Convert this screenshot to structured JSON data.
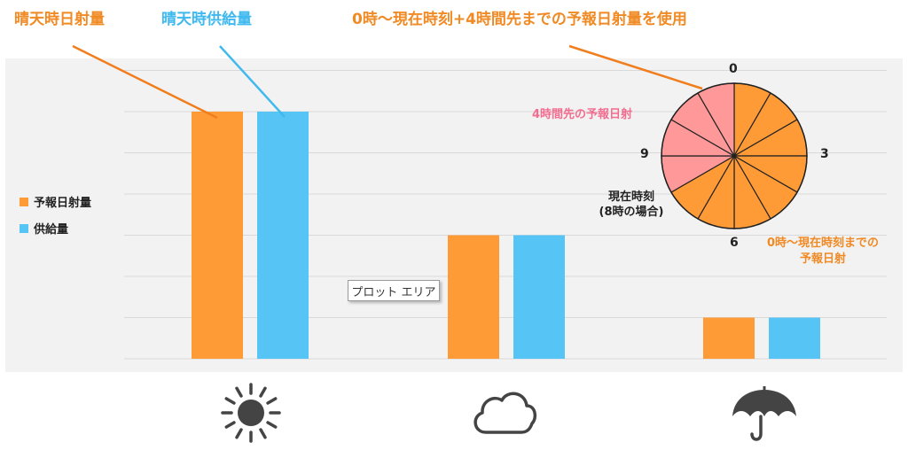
{
  "labels": {
    "forecast_label": "晴天時日射量",
    "supply_label": "晴天時供給量",
    "note": "0時～現在時刻+4時間先までの予報日射量を使用"
  },
  "legend": {
    "forecast": "予報日射量",
    "supply": "供給量"
  },
  "tooltip": "プロット エリア",
  "colors": {
    "forecast": "#ff9b37",
    "supply": "#56c4f5",
    "forecast_future": "#ff9999",
    "plot_bg": "#f2f2f2",
    "gridline": "#d9d9d9",
    "icon": "#444444"
  },
  "clock": {
    "hour_labels": [
      "0",
      "3",
      "6",
      "9"
    ],
    "forecast_4h_label": "4時間先の予報日射",
    "now_label_line1": "現在時刻",
    "now_label_line2": "(8時の場合)",
    "until_now_line1": "0時～現在時刻までの",
    "until_now_line2": "予報日射",
    "segments": 12,
    "current_hour": 8,
    "future_hours": 4
  },
  "icons": [
    "sun-icon",
    "cloud-icon",
    "umbrella-icon"
  ],
  "chart_data": {
    "type": "bar",
    "categories": [
      "sunny",
      "cloudy",
      "rainy"
    ],
    "series": [
      {
        "name": "予報日射量",
        "values": [
          6,
          3,
          1
        ]
      },
      {
        "name": "供給量",
        "values": [
          6,
          3,
          1
        ]
      }
    ],
    "ylim": [
      0,
      7
    ],
    "grid": true,
    "legend_position": "left"
  }
}
